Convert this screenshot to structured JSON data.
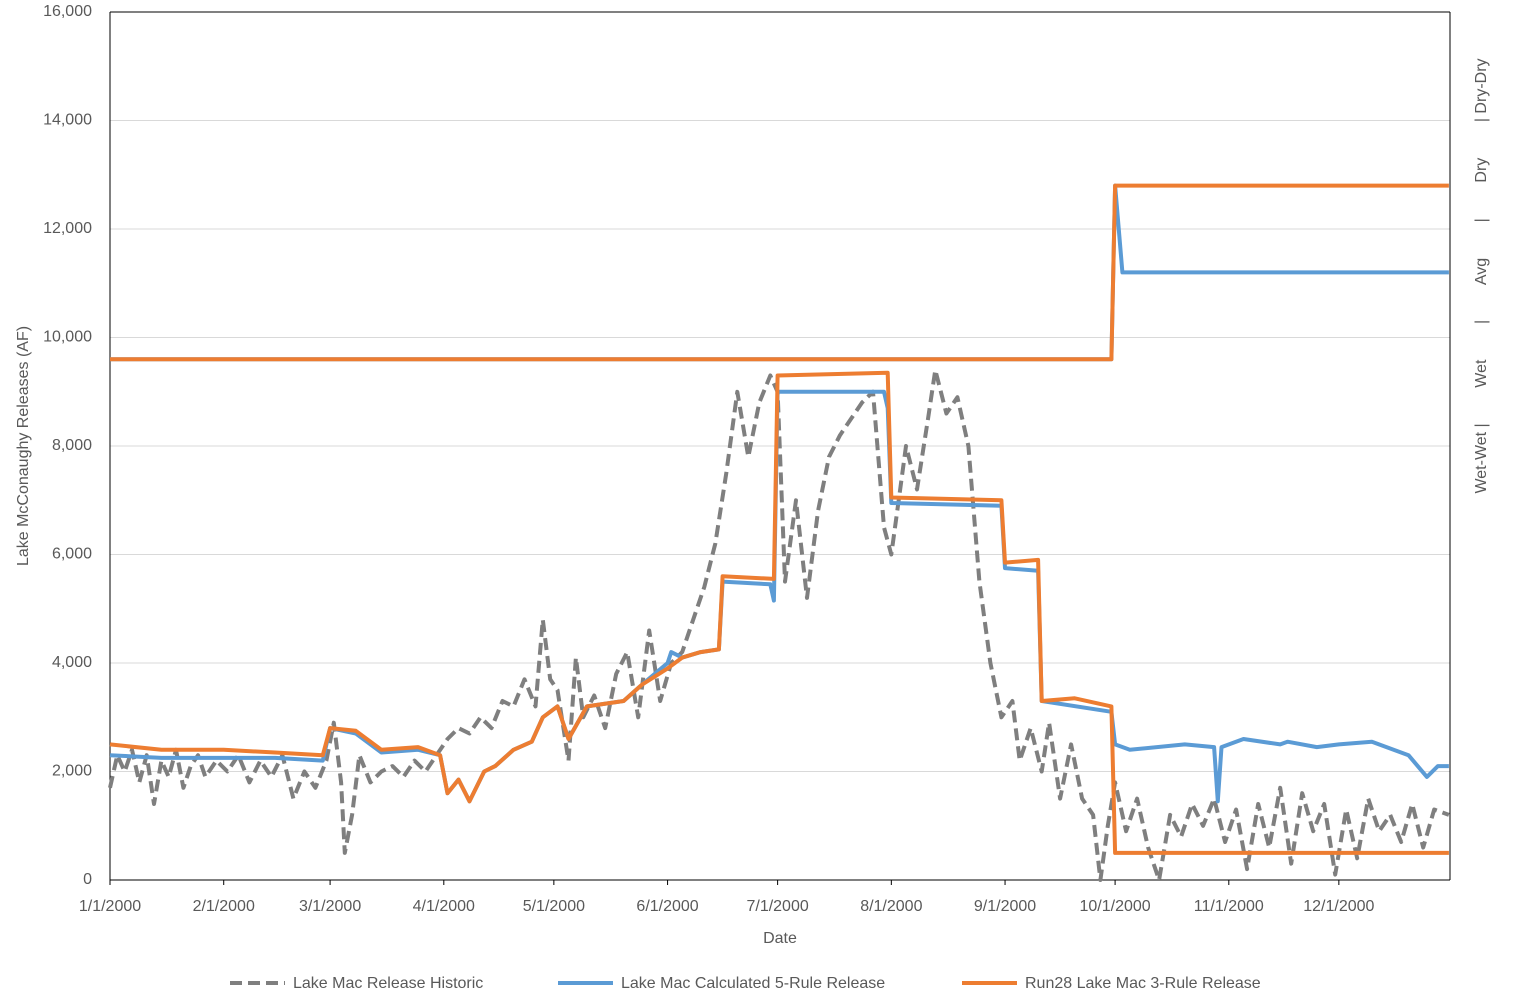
{
  "chart_data": {
    "type": "line",
    "y_label": "Lake McConaughy Releases (AF)",
    "x_label": "Date",
    "right_label": "Wet-Wet |        Wet        |        Avg        |        Dry        | Dry-Dry",
    "ylim": [
      0,
      16000
    ],
    "yticks": [
      0,
      {
        "value": 2000,
        "label": "2,000"
      },
      {
        "value": 4000,
        "label": "4,000"
      },
      {
        "value": 6000,
        "label": "6,000"
      },
      {
        "value": 8000,
        "label": "8,000"
      },
      {
        "value": 10000,
        "label": "10,000"
      },
      {
        "value": 12000,
        "label": "12,000"
      },
      {
        "value": 14000,
        "label": "14,000"
      },
      {
        "value": 16000,
        "label": "16,000"
      }
    ],
    "xlim": [
      "1/1/2000",
      "12/31/2000"
    ],
    "xticks": [
      "1/1/2000",
      "2/1/2000",
      "3/1/2000",
      "4/1/2000",
      "5/1/2000",
      "6/1/2000",
      "7/1/2000",
      "8/1/2000",
      "9/1/2000",
      "10/1/2000",
      "11/1/2000",
      "12/1/2000"
    ],
    "grid": true,
    "legend": "bottom",
    "series": [
      {
        "name": "Lake Mac Release Historic",
        "color": "#7f7f7f",
        "dash": true,
        "x": [
          "1/1/2000",
          "1/3/2000",
          "1/5/2000",
          "1/7/2000",
          "1/9/2000",
          "1/11/2000",
          "1/13/2000",
          "1/15/2000",
          "1/17/2000",
          "1/19/2000",
          "1/21/2000",
          "1/23/2000",
          "1/25/2000",
          "1/27/2000",
          "1/30/2000",
          "2/2/2000",
          "2/5/2000",
          "2/8/2000",
          "2/11/2000",
          "2/14/2000",
          "2/17/2000",
          "2/20/2000",
          "2/23/2000",
          "2/26/2000",
          "2/29/2000",
          "3/2/2000",
          "3/4/2000",
          "3/5/2000",
          "3/7/2000",
          "3/9/2000",
          "3/12/2000",
          "3/15/2000",
          "3/18/2000",
          "3/21/2000",
          "3/24/2000",
          "3/27/2000",
          "3/30/2000",
          "4/2/2000",
          "4/5/2000",
          "4/8/2000",
          "4/11/2000",
          "4/14/2000",
          "4/17/2000",
          "4/20/2000",
          "4/23/2000",
          "4/26/2000",
          "4/28/2000",
          "4/30/2000",
          "5/2/2000",
          "5/5/2000",
          "5/7/2000",
          "5/9/2000",
          "5/12/2000",
          "5/15/2000",
          "5/18/2000",
          "5/21/2000",
          "5/24/2000",
          "5/27/2000",
          "5/30/2000",
          "6/2/2000",
          "6/5/2000",
          "6/8/2000",
          "6/11/2000",
          "6/14/2000",
          "6/17/2000",
          "6/20/2000",
          "6/23/2000",
          "6/26/2000",
          "6/29/2000",
          "7/1/2000",
          "7/3/2000",
          "7/6/2000",
          "7/9/2000",
          "7/12/2000",
          "7/15/2000",
          "7/18/2000",
          "7/21/2000",
          "7/24/2000",
          "7/27/2000",
          "7/30/2000",
          "8/1/2000",
          "8/3/2000",
          "8/5/2000",
          "8/8/2000",
          "8/11/2000",
          "8/13/2000",
          "8/16/2000",
          "8/19/2000",
          "8/22/2000",
          "8/25/2000",
          "8/28/2000",
          "8/31/2000",
          "9/3/2000",
          "9/5/2000",
          "9/8/2000",
          "9/11/2000",
          "9/13/2000",
          "9/16/2000",
          "9/19/2000",
          "9/22/2000",
          "9/25/2000",
          "9/27/2000",
          "9/29/2000",
          "10/1/2000",
          "10/4/2000",
          "10/7/2000",
          "10/10/2000",
          "10/13/2000",
          "10/16/2000",
          "10/19/2000",
          "10/22/2000",
          "10/25/2000",
          "10/28/2000",
          "10/31/2000",
          "11/3/2000",
          "11/6/2000",
          "11/9/2000",
          "11/12/2000",
          "11/15/2000",
          "11/18/2000",
          "11/21/2000",
          "11/24/2000",
          "11/27/2000",
          "11/30/2000",
          "12/3/2000",
          "12/6/2000",
          "12/9/2000",
          "12/12/2000",
          "12/15/2000",
          "12/18/2000",
          "12/21/2000",
          "12/24/2000",
          "12/27/2000",
          "12/31/2000"
        ],
        "values": [
          1700,
          2300,
          2000,
          2400,
          1800,
          2300,
          1400,
          2200,
          1900,
          2400,
          1700,
          2100,
          2300,
          1900,
          2200,
          2000,
          2300,
          1800,
          2200,
          1900,
          2300,
          1500,
          2000,
          1700,
          2200,
          2900,
          1800,
          500,
          1200,
          2300,
          1800,
          2000,
          2100,
          1900,
          2200,
          2000,
          2300,
          2600,
          2800,
          2700,
          3000,
          2800,
          3300,
          3200,
          3700,
          3200,
          4800,
          3700,
          3500,
          2200,
          4100,
          3000,
          3400,
          2800,
          3800,
          4200,
          3000,
          4600,
          3300,
          4000,
          4200,
          4800,
          5400,
          6200,
          7500,
          9000,
          7800,
          8800,
          9300,
          9000,
          5500,
          7000,
          5200,
          6800,
          7800,
          8200,
          8500,
          8800,
          9000,
          6500,
          6000,
          7000,
          8000,
          7200,
          8500,
          9400,
          8600,
          8900,
          8000,
          5500,
          4000,
          3000,
          3300,
          2200,
          2800,
          2000,
          2900,
          1500,
          2500,
          1500,
          1200,
          0,
          1000,
          1800,
          900,
          1500,
          600,
          0,
          1200,
          800,
          1400,
          1000,
          1500,
          700,
          1300,
          200,
          1400,
          600,
          1700,
          300,
          1600,
          900,
          1400,
          100,
          1300,
          400,
          1500,
          900,
          1200,
          700,
          1400,
          600,
          1300,
          1200
        ]
      },
      {
        "name": "Lake Mac Calculated 5-Rule Release",
        "color": "#5b9bd5",
        "dash": false,
        "x": [
          "1/1/2000",
          "1/15/2000",
          "2/1/2000",
          "2/15/2000",
          "2/28/2000",
          "3/1/2000",
          "3/8/2000",
          "3/15/2000",
          "3/25/2000",
          "3/31/2000",
          "4/2/2000",
          "4/5/2000",
          "4/8/2000",
          "4/12/2000",
          "4/15/2000",
          "4/20/2000",
          "4/25/2000",
          "4/28/2000",
          "5/2/2000",
          "5/5/2000",
          "5/10/2000",
          "5/20/2000",
          "5/25/2000",
          "6/1/2000",
          "6/2/2000",
          "6/5/2000",
          "6/10/2000",
          "6/15/2000",
          "6/16/2000",
          "6/29/2000",
          "6/30/2000",
          "7/1/2000",
          "7/30/2000",
          "7/31/2000",
          "8/1/2000",
          "8/31/2000",
          "9/1/2000",
          "9/10/2000",
          "9/11/2000",
          "9/30/2000",
          "10/1/2000",
          "10/5/2000",
          "10/20/2000",
          "10/28/2000",
          "10/29/2000",
          "10/30/2000",
          "11/5/2000",
          "11/15/2000",
          "11/17/2000",
          "11/25/2000",
          "12/1/2000",
          "12/10/2000",
          "12/20/2000",
          "12/25/2000",
          "12/28/2000",
          "12/31/2000"
        ],
        "values": [
          2300,
          2250,
          2250,
          2250,
          2200,
          2800,
          2700,
          2350,
          2400,
          2300,
          1600,
          1850,
          1450,
          2000,
          2100,
          2400,
          2550,
          3000,
          3200,
          2600,
          3200,
          3300,
          3600,
          4000,
          4200,
          4100,
          4200,
          4250,
          5500,
          5450,
          5150,
          9000,
          9000,
          8700,
          6950,
          6900,
          5750,
          5700,
          3300,
          3100,
          2500,
          2400,
          2500,
          2450,
          1450,
          2450,
          2600,
          2500,
          2550,
          2450,
          2500,
          2550,
          2300,
          1900,
          2100,
          2100
        ]
      },
      {
        "name": "Run28 Lake Mac 3-Rule Release",
        "color": "#ed7d31",
        "dash": false,
        "x": [
          "1/1/2000",
          "1/15/2000",
          "2/1/2000",
          "2/15/2000",
          "2/28/2000",
          "3/1/2000",
          "3/8/2000",
          "3/15/2000",
          "3/25/2000",
          "3/31/2000",
          "4/2/2000",
          "4/5/2000",
          "4/8/2000",
          "4/12/2000",
          "4/15/2000",
          "4/20/2000",
          "4/25/2000",
          "4/28/2000",
          "5/2/2000",
          "5/5/2000",
          "5/10/2000",
          "5/20/2000",
          "5/25/2000",
          "6/1/2000",
          "6/5/2000",
          "6/10/2000",
          "6/15/2000",
          "6/16/2000",
          "6/30/2000",
          "7/1/2000",
          "7/31/2000",
          "8/1/2000",
          "8/31/2000",
          "9/1/2000",
          "9/10/2000",
          "9/11/2000",
          "9/20/2000",
          "9/30/2000",
          "10/1/2000",
          "12/31/2000"
        ],
        "values": [
          2500,
          2400,
          2400,
          2350,
          2300,
          2800,
          2750,
          2400,
          2450,
          2300,
          1600,
          1850,
          1450,
          2000,
          2100,
          2400,
          2550,
          3000,
          3200,
          2600,
          3200,
          3300,
          3600,
          3900,
          4100,
          4200,
          4250,
          5600,
          5550,
          9300,
          9350,
          7050,
          7000,
          5850,
          5900,
          3300,
          3350,
          3200,
          500,
          500
        ]
      }
    ],
    "thresholds": [
      {
        "color": "#5b9bd5",
        "x": [
          "1/1/2000",
          "9/30/2000",
          "10/1/2000",
          "10/3/2000",
          "12/31/2000"
        ],
        "values": [
          9600,
          9600,
          12800,
          11200,
          11200
        ]
      },
      {
        "color": "#ed7d31",
        "x": [
          "1/1/2000",
          "9/30/2000",
          "10/1/2000",
          "12/31/2000"
        ],
        "values": [
          9600,
          9600,
          12800,
          12800
        ]
      }
    ]
  }
}
